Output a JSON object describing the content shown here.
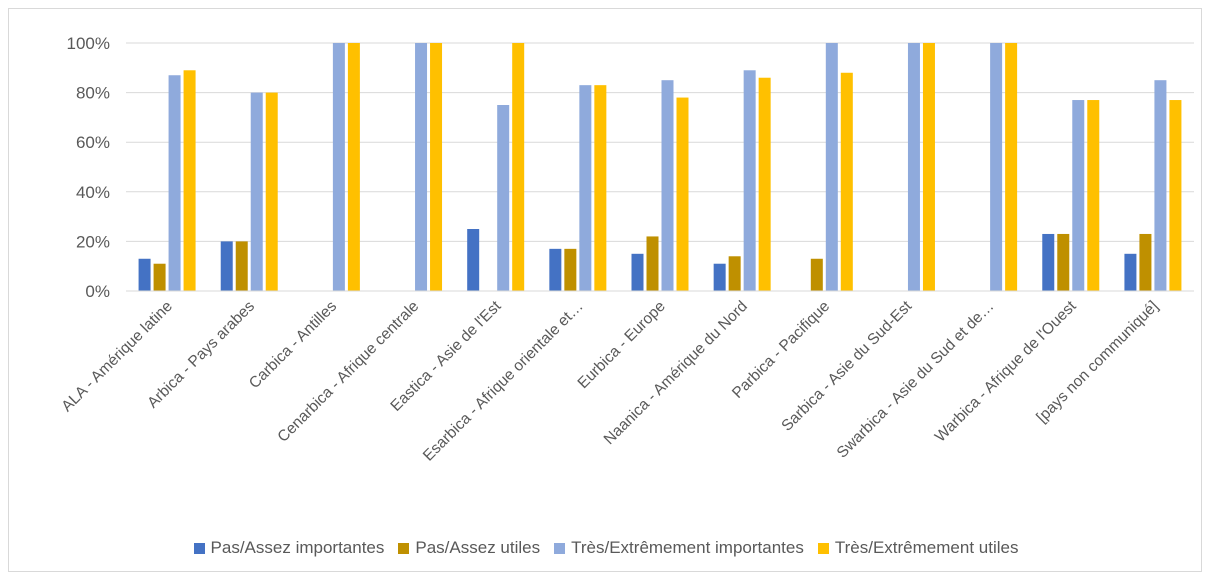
{
  "chart_data": {
    "type": "bar",
    "title": "",
    "xlabel": "",
    "ylabel": "",
    "ylim": [
      0,
      100
    ],
    "yticks": [
      "0%",
      "20%",
      "40%",
      "60%",
      "80%",
      "100%"
    ],
    "grid": true,
    "legend_position": "bottom",
    "categories": [
      "ALA - Amérique latine",
      "Arbica - Pays arabes",
      "Carbica - Antilles",
      "Cenarbica - Afrique centrale",
      "Eastica - Asie de l'Est",
      "Esarbica - Afrique orientale et…",
      "Eurbica - Europe",
      "Naanica - Amérique du Nord",
      "Parbica - Pacifique",
      "Sarbica - Asie du Sud-Est",
      "Swarbica - Asie du Sud et de…",
      "Warbica - Afrique de l'Ouest",
      "[pays non communiqué]"
    ],
    "series": [
      {
        "name": "Pas/Assez importantes",
        "color": "#4472c4",
        "values": [
          13,
          20,
          0,
          0,
          25,
          17,
          15,
          11,
          0,
          0,
          0,
          23,
          15
        ]
      },
      {
        "name": "Pas/Assez utiles",
        "color": "#bf9000",
        "values": [
          11,
          20,
          0,
          0,
          0,
          17,
          22,
          14,
          13,
          0,
          0,
          23,
          23
        ]
      },
      {
        "name": "Très/Extrêmement importantes",
        "color": "#8faadc",
        "values": [
          87,
          80,
          100,
          100,
          75,
          83,
          85,
          89,
          100,
          100,
          100,
          77,
          85
        ]
      },
      {
        "name": "Très/Extrêmement utiles",
        "color": "#ffc000",
        "values": [
          89,
          80,
          100,
          100,
          100,
          83,
          78,
          86,
          88,
          100,
          100,
          77,
          77
        ]
      }
    ]
  }
}
